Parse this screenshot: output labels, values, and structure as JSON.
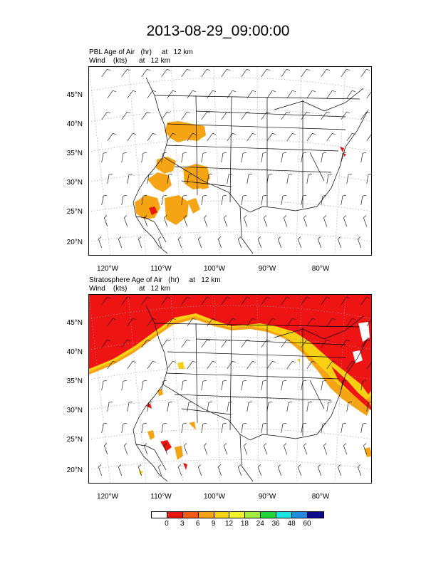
{
  "title": "2013-08-29_09:00:00",
  "panels": [
    {
      "line1": "PBL Age of Air   (hr)     at   12 km",
      "line2": "Wind    (kts)      at   12 km"
    },
    {
      "line1": "Stratosphere Age of Air   (hr)     at   12 km",
      "line2": "Wind    (kts)      at   12 km"
    }
  ],
  "lat_labels": [
    "45°N",
    "40°N",
    "35°N",
    "30°N",
    "25°N",
    "20°N"
  ],
  "lon_labels": [
    "120°W",
    "110°W",
    "100°W",
    "90°W",
    "80°W"
  ],
  "colorbar": {
    "labels": [
      "0",
      "3",
      "6",
      "9",
      "12",
      "18",
      "24",
      "36",
      "48",
      "60"
    ],
    "colors": [
      "#ffffff",
      "#e8170f",
      "#f45a14",
      "#f5a413",
      "#f7d112",
      "#f5f32a",
      "#a3ec3c",
      "#1ed83f",
      "#1ae4e4",
      "#238ae5",
      "#0c0a8c"
    ]
  },
  "colors": {
    "pbl": "#f5a413",
    "strat": "#ef1414",
    "lines": "#000000",
    "grid": "#9a9a9a"
  }
}
